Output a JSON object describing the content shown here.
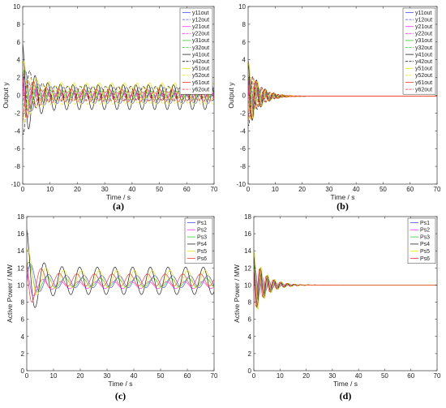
{
  "chart_data": [
    {
      "id": "a",
      "type": "line",
      "panel_label": "(a)",
      "xlabel": "Time / s",
      "ylabel": "Output y",
      "xlim": [
        0,
        70
      ],
      "ylim": [
        -10,
        10
      ],
      "xticks": [
        0,
        10,
        20,
        30,
        40,
        50,
        60,
        70
      ],
      "yticks": [
        -10,
        -8,
        -6,
        -4,
        -2,
        0,
        2,
        4,
        6,
        8,
        10
      ],
      "legend_position": "top-right",
      "series": [
        {
          "name": "y11out",
          "color": "#4d4dff",
          "dash": "",
          "amp0": 3.5,
          "amp_inf": 0.9,
          "offset": 0.0,
          "period": 4.6,
          "phase": 0.0
        },
        {
          "name": "y12out",
          "color": "#4d4dff",
          "dash": "4,2",
          "amp0": 3.0,
          "amp_inf": 0.5,
          "offset": -0.3,
          "period": 4.6,
          "phase": 1.0
        },
        {
          "name": "y21out",
          "color": "#ff33ff",
          "dash": "",
          "amp0": 3.0,
          "amp_inf": 0.4,
          "offset": 0.1,
          "period": 4.6,
          "phase": 2.0
        },
        {
          "name": "y22out",
          "color": "#ff33ff",
          "dash": "4,2",
          "amp0": 2.8,
          "amp_inf": 0.3,
          "offset": 0.0,
          "period": 4.6,
          "phase": 2.6
        },
        {
          "name": "y31out",
          "color": "#33cc33",
          "dash": "",
          "amp0": 3.5,
          "amp_inf": 0.5,
          "offset": 0.0,
          "period": 4.6,
          "phase": 0.5
        },
        {
          "name": "y32out",
          "color": "#33cc33",
          "dash": "4,2",
          "amp0": 3.0,
          "amp_inf": 0.4,
          "offset": 0.1,
          "period": 4.6,
          "phase": 3.1
        },
        {
          "name": "y41out",
          "color": "#222222",
          "dash": "",
          "amp0": 6.0,
          "amp_inf": 1.4,
          "offset": -0.2,
          "period": 4.6,
          "phase": 1.6
        },
        {
          "name": "y42out",
          "color": "#222222",
          "dash": "4,2",
          "amp0": 5.0,
          "amp_inf": 0.8,
          "offset": 0.2,
          "period": 4.6,
          "phase": 4.2
        },
        {
          "name": "y51out",
          "color": "#e6e600",
          "dash": "",
          "amp0": 4.0,
          "amp_inf": 1.2,
          "offset": 0.2,
          "period": 4.6,
          "phase": 0.9
        },
        {
          "name": "y52out",
          "color": "#e6e600",
          "dash": "4,2",
          "amp0": 3.5,
          "amp_inf": 1.0,
          "offset": 0.0,
          "period": 4.6,
          "phase": 3.7
        },
        {
          "name": "y61out",
          "color": "#ff3333",
          "dash": "",
          "amp0": 4.0,
          "amp_inf": 0.7,
          "offset": 0.0,
          "period": 4.6,
          "phase": 2.3
        },
        {
          "name": "y62out",
          "color": "#ff3333",
          "dash": "4,2",
          "amp0": 3.0,
          "amp_inf": 0.5,
          "offset": -0.1,
          "period": 4.6,
          "phase": 5.0
        }
      ]
    },
    {
      "id": "b",
      "type": "line",
      "panel_label": "(b)",
      "xlabel": "Time / s",
      "ylabel": "Output y",
      "xlim": [
        0,
        70
      ],
      "ylim": [
        -10,
        10
      ],
      "xticks": [
        0,
        10,
        20,
        30,
        40,
        50,
        60,
        70
      ],
      "yticks": [
        -10,
        -8,
        -6,
        -4,
        -2,
        0,
        2,
        4,
        6,
        8,
        10
      ],
      "legend_position": "top-right",
      "series": [
        {
          "name": "y11out",
          "color": "#4d4dff",
          "dash": "",
          "amp0": 2.5,
          "offset": -0.1,
          "period": 3.2,
          "phase": 0.0,
          "decay": 4.0
        },
        {
          "name": "y12out",
          "color": "#4d4dff",
          "dash": "4,2",
          "amp0": 2.0,
          "offset": -0.1,
          "period": 3.2,
          "phase": 1.0,
          "decay": 4.0
        },
        {
          "name": "y21out",
          "color": "#ff33ff",
          "dash": "",
          "amp0": 2.0,
          "offset": -0.1,
          "period": 3.2,
          "phase": 2.0,
          "decay": 4.0
        },
        {
          "name": "y22out",
          "color": "#ff33ff",
          "dash": "4,2",
          "amp0": 2.0,
          "offset": -0.1,
          "period": 3.2,
          "phase": 2.6,
          "decay": 4.0
        },
        {
          "name": "y31out",
          "color": "#33cc33",
          "dash": "",
          "amp0": 2.5,
          "offset": -0.1,
          "period": 3.2,
          "phase": 0.5,
          "decay": 4.0
        },
        {
          "name": "y32out",
          "color": "#33cc33",
          "dash": "4,2",
          "amp0": 2.0,
          "offset": -0.1,
          "period": 3.2,
          "phase": 3.1,
          "decay": 4.0
        },
        {
          "name": "y41out",
          "color": "#222222",
          "dash": "",
          "amp0": 4.0,
          "offset": -0.1,
          "period": 3.2,
          "phase": 1.6,
          "decay": 4.0
        },
        {
          "name": "y42out",
          "color": "#222222",
          "dash": "4,2",
          "amp0": 3.5,
          "offset": -0.1,
          "period": 3.2,
          "phase": 4.2,
          "decay": 4.0
        },
        {
          "name": "y51out",
          "color": "#e6e600",
          "dash": "",
          "amp0": 4.0,
          "offset": -0.1,
          "period": 3.2,
          "phase": 0.9,
          "decay": 4.0
        },
        {
          "name": "y52out",
          "color": "#e6e600",
          "dash": "4,2",
          "amp0": 3.0,
          "offset": -0.1,
          "period": 3.2,
          "phase": 3.7,
          "decay": 4.0
        },
        {
          "name": "y61out",
          "color": "#ff3333",
          "dash": "",
          "amp0": 3.5,
          "offset": -0.1,
          "period": 3.2,
          "phase": 2.3,
          "decay": 4.0
        },
        {
          "name": "y62out",
          "color": "#ff3333",
          "dash": "4,2",
          "amp0": 3.0,
          "offset": -0.1,
          "period": 3.2,
          "phase": 5.0,
          "decay": 4.0
        }
      ]
    },
    {
      "id": "c",
      "type": "line",
      "panel_label": "(c)",
      "xlabel": "Time / s",
      "ylabel": "Active Power / MW",
      "xlim": [
        0,
        70
      ],
      "ylim": [
        0,
        18
      ],
      "xticks": [
        0,
        10,
        20,
        30,
        40,
        50,
        60,
        70
      ],
      "yticks": [
        0,
        2,
        4,
        6,
        8,
        10,
        12,
        14,
        16,
        18
      ],
      "legend_position": "top-right",
      "series": [
        {
          "name": "Ps1",
          "color": "#4d4dff",
          "dash": "",
          "amp0": 3.0,
          "amp_inf": 0.7,
          "offset": 10.4,
          "period": 6.6,
          "phase": 0.0
        },
        {
          "name": "Ps2",
          "color": "#ff33ff",
          "dash": "",
          "amp0": 2.5,
          "amp_inf": 0.4,
          "offset": 10.0,
          "period": 6.6,
          "phase": 2.0
        },
        {
          "name": "Ps3",
          "color": "#33cc33",
          "dash": "",
          "amp0": 3.0,
          "amp_inf": 0.5,
          "offset": 10.3,
          "period": 6.6,
          "phase": 0.6
        },
        {
          "name": "Ps4",
          "color": "#222222",
          "dash": "",
          "amp0": 6.0,
          "amp_inf": 1.6,
          "offset": 10.5,
          "period": 6.6,
          "phase": 1.6
        },
        {
          "name": "Ps5",
          "color": "#e6e600",
          "dash": "",
          "amp0": 4.0,
          "amp_inf": 1.0,
          "offset": 10.7,
          "period": 6.6,
          "phase": 0.9
        },
        {
          "name": "Ps6",
          "color": "#ff3333",
          "dash": "",
          "amp0": 4.5,
          "amp_inf": 0.7,
          "offset": 10.6,
          "period": 6.6,
          "phase": 2.6
        }
      ]
    },
    {
      "id": "d",
      "type": "line",
      "panel_label": "(d)",
      "xlabel": "Time / s",
      "ylabel": "Active Power / MW",
      "xlim": [
        0,
        70
      ],
      "ylim": [
        0,
        18
      ],
      "xticks": [
        0,
        10,
        20,
        30,
        40,
        50,
        60,
        70
      ],
      "yticks": [
        0,
        2,
        4,
        6,
        8,
        10,
        12,
        14,
        16,
        18
      ],
      "legend_position": "top-right",
      "series": [
        {
          "name": "Ps1",
          "color": "#4d4dff",
          "dash": "",
          "amp0": 2.0,
          "offset": 10.0,
          "period": 2.6,
          "phase": 0.0,
          "decay": 4.5
        },
        {
          "name": "Ps2",
          "color": "#ff33ff",
          "dash": "",
          "amp0": 2.0,
          "offset": 10.0,
          "period": 2.6,
          "phase": 2.0,
          "decay": 4.5
        },
        {
          "name": "Ps3",
          "color": "#33cc33",
          "dash": "",
          "amp0": 2.5,
          "offset": 10.0,
          "period": 2.6,
          "phase": 0.6,
          "decay": 4.5
        },
        {
          "name": "Ps4",
          "color": "#222222",
          "dash": "",
          "amp0": 3.5,
          "offset": 10.0,
          "period": 2.6,
          "phase": 1.6,
          "decay": 4.5
        },
        {
          "name": "Ps5",
          "color": "#e6e600",
          "dash": "",
          "amp0": 4.0,
          "offset": 10.0,
          "period": 2.6,
          "phase": 0.9,
          "decay": 4.5
        },
        {
          "name": "Ps6",
          "color": "#ff3333",
          "dash": "",
          "amp0": 3.0,
          "offset": 10.0,
          "period": 2.6,
          "phase": 2.6,
          "decay": 4.5
        }
      ]
    }
  ]
}
